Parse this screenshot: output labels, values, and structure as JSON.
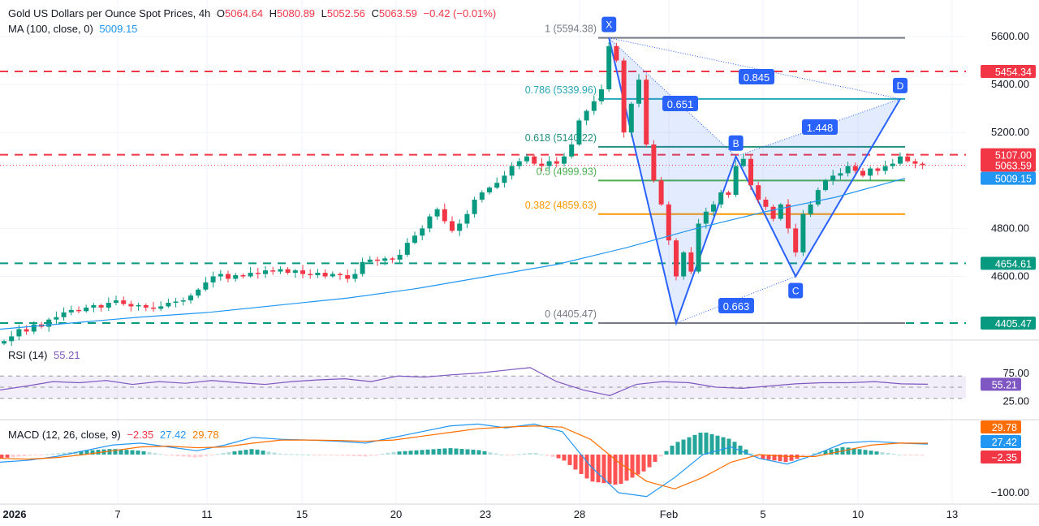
{
  "header": {
    "title": "Gold US Dollars per Ounce Spot Prices, 4h",
    "open_label": "O",
    "open": "5064.64",
    "high_label": "H",
    "high": "5080.89",
    "low_label": "L",
    "low": "5052.56",
    "close_label": "C",
    "close": "5063.59",
    "change": "−0.42 (−0.01%)",
    "ma_label": "MA (100, close, 0)",
    "ma_value": "5009.15",
    "rsi_label": "RSI (14)",
    "rsi_value": "55.21",
    "macd_label": "MACD (12, 26, close, 9)",
    "macd_hist": "−2.35",
    "macd_value": "27.42",
    "macd_signal": "29.78"
  },
  "colors": {
    "up": "#089981",
    "down": "#f23645",
    "ma": "#2196f3",
    "pattern": "#2962ff",
    "rsi": "#7e57c2",
    "macd": "#2196f3",
    "signal": "#ff6d00"
  },
  "chart_data": [
    {
      "type": "candlestick",
      "ylim": [
        4330,
        5640
      ],
      "yticks": [
        "5600.00",
        "5400.00",
        "5200.00",
        "4800.00",
        "4600.00"
      ],
      "ytick_values": [
        5600,
        5400,
        5200,
        4800,
        4600
      ],
      "xticks": [
        "2026",
        "7",
        "11",
        "15",
        "20",
        "23",
        "28",
        "Feb",
        "5",
        "10",
        "13"
      ],
      "closes": [
        4330,
        4350,
        4380,
        4370,
        4400,
        4390,
        4420,
        4430,
        4450,
        4460,
        4455,
        4470,
        4480,
        4470,
        4490,
        4500,
        4485,
        4475,
        4480,
        4470,
        4465,
        4475,
        4490,
        4495,
        4500,
        4520,
        4545,
        4575,
        4600,
        4610,
        4590,
        4605,
        4600,
        4615,
        4610,
        4625,
        4620,
        4630,
        4615,
        4625,
        4610,
        4605,
        4615,
        4600,
        4610,
        4605,
        4590,
        4610,
        4660,
        4670,
        4665,
        4675,
        4670,
        4690,
        4740,
        4770,
        4800,
        4850,
        4880,
        4830,
        4790,
        4820,
        4860,
        4920,
        4950,
        4970,
        4990,
        5020,
        5060,
        5080,
        5100,
        5070,
        5060,
        5080,
        5070,
        5100,
        5150,
        5250,
        5290,
        5330,
        5380,
        5560,
        5500,
        5200,
        5320,
        5420,
        5150,
        5000,
        4900,
        4750,
        4600,
        4700,
        4620,
        4820,
        4870,
        4900,
        4950,
        4940,
        5060,
        5090,
        4980,
        4920,
        4890,
        4840,
        4900,
        4800,
        4700,
        4860,
        4900,
        4960,
        5000,
        5020,
        5030,
        5060,
        5040,
        5020,
        5050,
        5040,
        5060,
        5070,
        5100,
        5080,
        5070,
        5063.59
      ],
      "ma": [
        4380,
        4405,
        4430,
        4450,
        4480,
        4510,
        4550,
        4600,
        4650,
        4720,
        4800,
        4870,
        4930,
        5009.15
      ],
      "levels": [
        {
          "price": 5454.34,
          "label": "5454.34",
          "style": "dashed",
          "color": "#f23645"
        },
        {
          "price": 5107.0,
          "label": "5107.00",
          "style": "dashed",
          "color": "#f23645"
        },
        {
          "price": 5063.59,
          "label": "5063.59",
          "style": "dotted",
          "color": "#f23645"
        },
        {
          "price": 5009.15,
          "label": "5009.15",
          "style": "none",
          "color": "#2196f3"
        },
        {
          "price": 4654.61,
          "label": "4654.61",
          "style": "dashed",
          "color": "#089981"
        },
        {
          "price": 4405.47,
          "label": "4405.47",
          "style": "dashed",
          "color": "#089981"
        }
      ],
      "fibonacci": [
        {
          "ratio": "1",
          "price": 5594.38,
          "label": "1 (5594.38)",
          "color": "#787b86"
        },
        {
          "ratio": "0.786",
          "price": 5339.96,
          "label": "0.786 (5339.96)",
          "color": "#26a6b8"
        },
        {
          "ratio": "0.618",
          "price": 5140.22,
          "label": "0.618 (5140.22)",
          "color": "#22917f"
        },
        {
          "ratio": "0.5",
          "price": 4999.93,
          "label": "0.5 (4999.93)",
          "color": "#4caf50"
        },
        {
          "ratio": "0.382",
          "price": 4859.63,
          "label": "0.382 (4859.63)",
          "color": "#ff9800"
        },
        {
          "ratio": "0",
          "price": 4405.47,
          "label": "0 (4405.47)",
          "color": "#787b86"
        }
      ],
      "harmonic": {
        "points": [
          {
            "name": "X",
            "candle": 81,
            "price": 5594.38,
            "label": "X"
          },
          {
            "name": "A",
            "candle": 90,
            "price": 4405.47,
            "label": ""
          },
          {
            "name": "B",
            "candle": 98,
            "price": 5100,
            "label": "B"
          },
          {
            "name": "C",
            "candle": 106,
            "price": 4600,
            "label": "C"
          },
          {
            "name": "D",
            "candle": 120,
            "price": 5339.96,
            "label": "D"
          }
        ],
        "ratios": [
          "0.651",
          "0.845",
          "1.448",
          "0.663"
        ]
      }
    },
    {
      "type": "line",
      "name": "RSI (14)",
      "ylim": [
        15,
        85
      ],
      "yticks": [
        "75.00",
        "25.00"
      ],
      "ytick_values": [
        75,
        25
      ],
      "bands": [
        70,
        50,
        30
      ],
      "values": [
        45,
        52,
        60,
        58,
        62,
        55,
        60,
        57,
        62,
        58,
        55,
        60,
        63,
        65,
        60,
        70,
        68,
        72,
        75,
        80,
        85,
        60,
        45,
        35,
        55,
        60,
        58,
        50,
        48,
        52,
        56,
        58,
        58,
        60,
        56,
        55.21
      ]
    },
    {
      "type": "line+bar",
      "name": "MACD (12, 26, close, 9)",
      "ylim": [
        -130,
        90
      ],
      "yticks": [
        "-100.00"
      ],
      "ytick_values": [
        -100
      ],
      "macd": [
        -20,
        -15,
        -5,
        10,
        25,
        30,
        20,
        10,
        25,
        45,
        40,
        38,
        35,
        30,
        45,
        60,
        75,
        80,
        70,
        80,
        60,
        -30,
        -100,
        -110,
        -60,
        0,
        20,
        -10,
        -25,
        0,
        30,
        35,
        30,
        27.42
      ],
      "signal": [
        -10,
        -12,
        -8,
        0,
        10,
        20,
        22,
        18,
        20,
        30,
        38,
        38,
        37,
        35,
        38,
        48,
        58,
        68,
        72,
        75,
        72,
        40,
        -20,
        -70,
        -90,
        -60,
        -20,
        0,
        -5,
        -5,
        10,
        25,
        30,
        29.78
      ],
      "labels": [
        "29.78",
        "27.42",
        "-2.35"
      ]
    }
  ]
}
